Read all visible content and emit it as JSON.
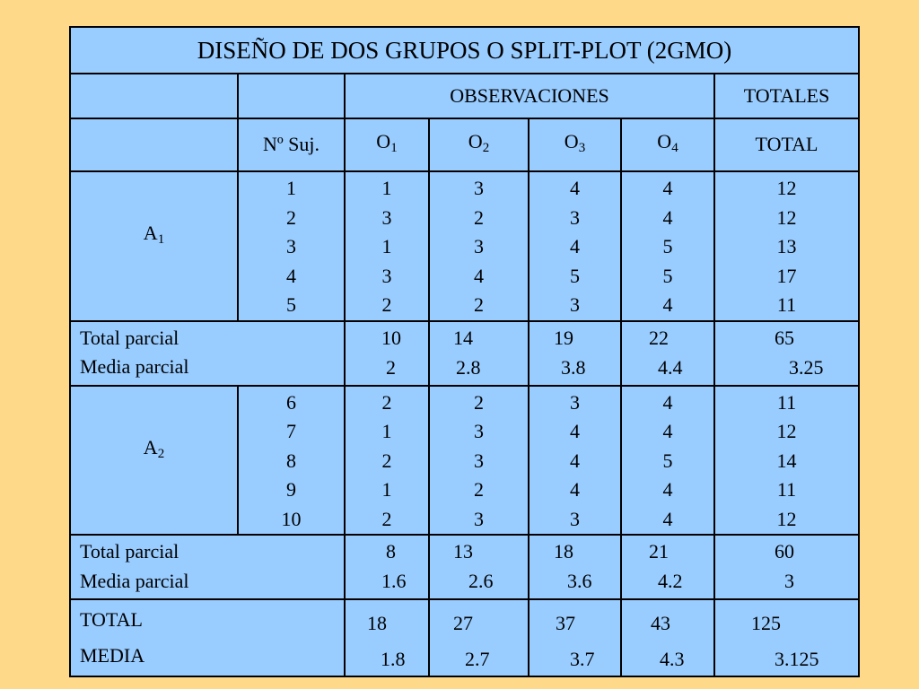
{
  "title": "DISEÑO DE DOS GRUPOS O SPLIT-PLOT (2GMO)",
  "header": {
    "observaciones": "OBSERVACIONES",
    "totales": "TOTALES",
    "n_suj": "Nº Suj.",
    "o_labels": [
      "O",
      "O",
      "O",
      "O"
    ],
    "o_subs": [
      "1",
      "2",
      "3",
      "4"
    ],
    "total": "TOTAL"
  },
  "groups": [
    {
      "label": "A",
      "sub": "1",
      "subjects": [
        "1",
        "2",
        "3",
        "4",
        "5"
      ],
      "o1": [
        "1",
        "3",
        "1",
        "3",
        "2"
      ],
      "o2": [
        "3",
        "2",
        "3",
        "4",
        "2"
      ],
      "o3": [
        "4",
        "3",
        "4",
        "5",
        "3"
      ],
      "o4": [
        "4",
        "4",
        "5",
        "5",
        "4"
      ],
      "totals": [
        "12",
        "12",
        "13",
        "17",
        "11"
      ],
      "total_parcial_label": "Total parcial",
      "media_parcial_label": "Media parcial",
      "total_parcial": [
        "10",
        "14",
        "19",
        "22",
        "65"
      ],
      "media_parcial": [
        "2",
        "2.8",
        "3.8",
        "4.4",
        "3.25"
      ]
    },
    {
      "label": "A",
      "sub": "2",
      "subjects": [
        "6",
        "7",
        "8",
        "9",
        "10"
      ],
      "o1": [
        "2",
        "1",
        "2",
        "1",
        "2"
      ],
      "o2": [
        "2",
        "3",
        "3",
        "2",
        "3"
      ],
      "o3": [
        "3",
        "4",
        "4",
        "4",
        "3"
      ],
      "o4": [
        "4",
        "4",
        "5",
        "4",
        "4"
      ],
      "totals": [
        "11",
        "12",
        "14",
        "11",
        "12"
      ],
      "total_parcial_label": "Total parcial",
      "media_parcial_label": "Media parcial",
      "total_parcial": [
        "8",
        "13",
        "18",
        "21",
        "60"
      ],
      "media_parcial": [
        "1.6",
        "2.6",
        "3.6",
        "4.2",
        "3"
      ]
    }
  ],
  "grand": {
    "total_label": "TOTAL",
    "media_label": "MEDIA",
    "total": [
      "18",
      "27",
      "37",
      "43",
      "125"
    ],
    "media": [
      "1.8",
      "2.7",
      "3.7",
      "4.3",
      "3.125"
    ]
  }
}
